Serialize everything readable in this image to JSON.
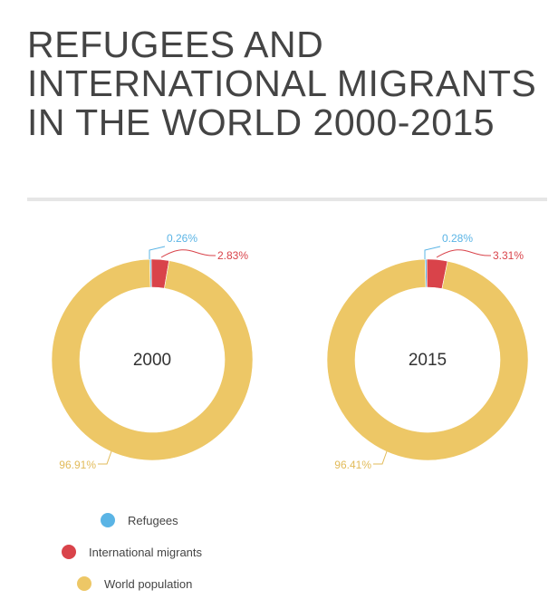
{
  "title": "REFUGEES AND INTERNATIONAL MIGRANTS IN THE WORLD 2000-2015",
  "chart_data": [
    {
      "type": "pie",
      "style": "donut",
      "center_label": "2000",
      "categories": [
        "Refugees",
        "International migrants",
        "World population"
      ],
      "values": [
        0.26,
        2.83,
        96.91
      ],
      "labels": [
        "0.26%",
        "2.83%",
        "96.91%"
      ]
    },
    {
      "type": "pie",
      "style": "donut",
      "center_label": "2015",
      "categories": [
        "Refugees",
        "International migrants",
        "World population"
      ],
      "values": [
        0.28,
        3.31,
        96.41
      ],
      "labels": [
        "0.28%",
        "3.31%",
        "96.41%"
      ]
    }
  ],
  "legend": {
    "placement": "bottom-left",
    "items": [
      {
        "label": "Refugees",
        "color": "#5AB4E5"
      },
      {
        "label": "International migrants",
        "color": "#D9434A"
      },
      {
        "label": "World population",
        "color": "#EDC766"
      }
    ]
  }
}
